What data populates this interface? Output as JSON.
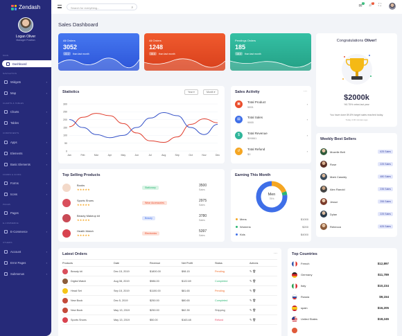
{
  "app": {
    "brand": "Zendash",
    "user_name": "Logan Oliver",
    "user_role": "Manager Position"
  },
  "sidebar": {
    "sections": [
      {
        "label": "MAIN"
      },
      {
        "label": "NAVIGATION"
      },
      {
        "label": "CHARTS & TABLES"
      },
      {
        "label": "COMPONENTS"
      },
      {
        "label": "FORMS & ICONS"
      },
      {
        "label": "PAGES"
      },
      {
        "label": "E-COMMERCE"
      },
      {
        "label": "OTHERS"
      }
    ],
    "items": [
      {
        "label": "Dashboard",
        "icon": "dashboard-icon"
      },
      {
        "label": "Widgets",
        "icon": "widgets-icon"
      },
      {
        "label": "Map",
        "icon": "map-icon"
      },
      {
        "label": "Charts",
        "icon": "charts-icon"
      },
      {
        "label": "Tables",
        "icon": "tables-icon"
      },
      {
        "label": "Apps",
        "icon": "apps-icon"
      },
      {
        "label": "Elements",
        "icon": "elements-icon"
      },
      {
        "label": "Basic Elements",
        "icon": "basic-elements-icon"
      },
      {
        "label": "Forms",
        "icon": "forms-icon"
      },
      {
        "label": "Icons",
        "icon": "icons-icon"
      },
      {
        "label": "Pages",
        "icon": "pages-icon"
      },
      {
        "label": "E-Commerce",
        "icon": "ecommerce-icon"
      },
      {
        "label": "Account",
        "icon": "account-icon"
      },
      {
        "label": "Error Pages",
        "icon": "error-icon"
      },
      {
        "label": "Submenus",
        "icon": "submenu-icon"
      }
    ]
  },
  "topbar": {
    "search_placeholder": "Search for everything...",
    "notif_count": "2",
    "msg_count": "5"
  },
  "page": {
    "title": "Sales Dashboard"
  },
  "stats": [
    {
      "label": "All Orders",
      "value": "3052",
      "change": "22.2",
      "note": "than last month",
      "color": "#3f6fe8"
    },
    {
      "label": "All Orders",
      "value": "1248",
      "change": "38.6",
      "note": "than last month",
      "color": "#ea4d2c"
    },
    {
      "label": "Pendings Orders",
      "value": "185",
      "change": "18.0",
      "note": "than last month",
      "color": "#2fb59a"
    }
  ],
  "congrats": {
    "title_prefix": "Congratulations ",
    "title_name": "Oliver!",
    "amount": "$2000k",
    "sub": "%0.75% vetes last year",
    "desc": "You have done 89.8% target sales reached today.",
    "time": "Today 4:00 minutes ago"
  },
  "statistics": {
    "title": "Statistics",
    "filter1": "Year",
    "filter2": "Month",
    "chart_data": {
      "type": "line",
      "categories": [
        "Jan",
        "Feb",
        "Mar",
        "Apr",
        "May",
        "Jun",
        "Jul",
        "Aug",
        "Sep",
        "Oct",
        "Nov",
        "Dec"
      ],
      "ylim": [
        0,
        300
      ],
      "yticks": [
        "0",
        "50",
        "100",
        "150",
        "200",
        "250",
        "300"
      ],
      "series": [
        {
          "values": [
            155,
            215,
            240,
            225,
            175,
            115,
            65,
            55,
            90,
            170,
            205,
            180
          ],
          "color": "#e03c2c"
        },
        {
          "values": [
            200,
            150,
            105,
            85,
            100,
            150,
            210,
            245,
            225,
            150,
            105,
            170
          ],
          "color": "#3552c8"
        }
      ]
    }
  },
  "sales_activity": {
    "title": "Sales Activity",
    "items": [
      {
        "label": "Total Product",
        "value": "5851",
        "color": "#ea4d2c",
        "icon": "box-icon"
      },
      {
        "label": "Total Sales",
        "value": "9865",
        "color": "#3f6fe8",
        "icon": "chart-icon"
      },
      {
        "label": "Total Revenue",
        "value": "$99861",
        "color": "#2fb59a",
        "icon": "dollar-icon"
      },
      {
        "label": "Total Refund",
        "value": "$0",
        "color": "#f5a623",
        "icon": "refund-icon"
      }
    ]
  },
  "weekly": {
    "title": "Weekly Best Sellers",
    "items": [
      {
        "name": "Mozelle Belt",
        "sales": "625 Sales"
      },
      {
        "name": "Rose",
        "sales": "225 Sales"
      },
      {
        "name": "Mark Cassidy",
        "sales": "480 Sales"
      },
      {
        "name": "Alex Ranold",
        "sales": "235 Sales"
      },
      {
        "name": "Jessci",
        "sales": "255 Sales"
      },
      {
        "name": "Dylan",
        "sales": "225 Sales"
      },
      {
        "name": "Rebecca",
        "sales": "625 Sales"
      }
    ]
  },
  "top_selling": {
    "title": "Top Selling Products",
    "items": [
      {
        "name": "Books",
        "category": "Stationary",
        "cat_color": "#2bb673",
        "num": "3500",
        "unit": "Sales"
      },
      {
        "name": "Sports Shoes",
        "category": "Wear Accessories",
        "cat_color": "#ea4d2c",
        "num": "2975",
        "unit": "Sales"
      },
      {
        "name": "Beauty Makeup kit",
        "category": "Beauty",
        "cat_color": "#3f6fe8",
        "num": "3780",
        "unit": "Sales"
      },
      {
        "name": "Health Watch",
        "category": "Electronics",
        "cat_color": "#ea4d2c",
        "num": "5397",
        "unit": "Sales"
      }
    ]
  },
  "earning": {
    "title": "Earning This Month",
    "center_label": "Men",
    "center_pct": "75%",
    "chart_data": {
      "type": "pie",
      "labels": [
        "Mens",
        "Womens",
        "Kids"
      ],
      "values": [
        1000,
        200,
        4000
      ],
      "colors": [
        "#f5a623",
        "#2bb673",
        "#3f6fe8"
      ]
    },
    "legend": [
      {
        "label": "Mens",
        "value": "$1000",
        "color": "#f5a623"
      },
      {
        "label": "Womens",
        "value": "$200",
        "color": "#2bb673"
      },
      {
        "label": "Kids",
        "value": "$4000",
        "color": "#3f6fe8"
      }
    ]
  },
  "orders": {
    "title": "Latest Orders",
    "columns": [
      "Products",
      "Date",
      "Revenue",
      "Net Profit",
      "Status",
      "Actions"
    ],
    "rows": [
      {
        "product": "Beauty kit",
        "date": "Dec 15, 2019",
        "revenue": "$1800.00",
        "profit": "$98.15",
        "status": "Pending",
        "img_color": "#d94f5c"
      },
      {
        "product": "Digital Watch",
        "date": "Aug 08, 2019",
        "revenue": "$986.00",
        "profit": "$122.69",
        "status": "Completed",
        "img_color": "#8b5c3a"
      },
      {
        "product": "Head Set",
        "date": "Sep 15, 2019",
        "revenue": "$1100.00",
        "profit": "$81.65",
        "status": "Pending",
        "img_color": "#f5c518"
      },
      {
        "product": "New Book",
        "date": "Dec 5, 2019",
        "revenue": "$250.00",
        "profit": "$80.65",
        "status": "Completed",
        "img_color": "#c44a3a"
      },
      {
        "product": "New Book",
        "date": "May 13, 2019",
        "revenue": "$250.00",
        "profit": "$62.35",
        "status": "Shipping",
        "img_color": "#c44a3a"
      },
      {
        "product": "Sports Shoes",
        "date": "May 13, 2019",
        "revenue": "$50.00",
        "profit": "$163.48",
        "status": "Refund",
        "img_color": "#d9434f"
      }
    ]
  },
  "countries": {
    "title": "Top Countries",
    "items": [
      {
        "name": "French",
        "amount": "$12,897",
        "flag": "france-flag-icon"
      },
      {
        "name": "Germany",
        "amount": "$11,789",
        "flag": "germany-flag-icon"
      },
      {
        "name": "Italy",
        "amount": "$10,234",
        "flag": "italy-flag-icon"
      },
      {
        "name": "Russia",
        "amount": "$9,154",
        "flag": "russia-flag-icon"
      },
      {
        "name": "spain",
        "amount": "$16,205",
        "flag": "spain-flag-icon"
      },
      {
        "name": "United States",
        "amount": "$18,245",
        "flag": "usa-flag-icon"
      },
      {
        "name": "",
        "amount": "",
        "flag": ""
      }
    ]
  }
}
